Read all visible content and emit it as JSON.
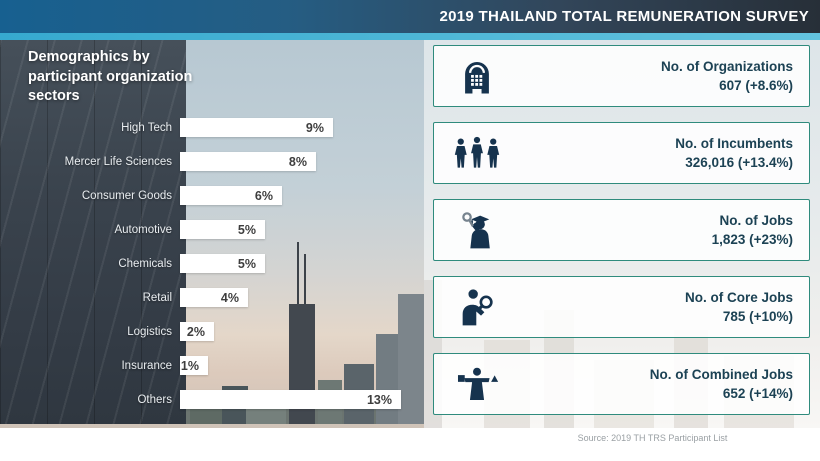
{
  "header": {
    "title": "2019 THAILAND TOTAL REMUNERATION SURVEY"
  },
  "chart": {
    "title": "Demographics by participant organization sectors"
  },
  "chart_data": {
    "type": "bar",
    "orientation": "horizontal",
    "title": "Demographics by participant organization sectors",
    "categories": [
      "High Tech",
      "Mercer Life Sciences",
      "Consumer Goods",
      "Automotive",
      "Chemicals",
      "Retail",
      "Logistics",
      "Insurance",
      "Others"
    ],
    "values": [
      9,
      8,
      6,
      5,
      5,
      4,
      2,
      1,
      13
    ],
    "value_labels": [
      "9%",
      "8%",
      "6%",
      "5%",
      "5%",
      "4%",
      "2%",
      "1%",
      "13%"
    ],
    "unit": "%",
    "xlim": [
      0,
      14
    ],
    "axis": "none",
    "grid": false,
    "legend": false,
    "bar_color": "#ffffff",
    "value_label_position": "inside-end"
  },
  "stats": {
    "cards": [
      {
        "icon": "organization-icon",
        "title": "No. of Organizations",
        "value": "607 (+8.6%)"
      },
      {
        "icon": "incumbents-icon",
        "title": "No. of Incumbents",
        "value": "326,016 (+13.4%)"
      },
      {
        "icon": "jobs-icon",
        "title": "No. of Jobs",
        "value": "1,823 (+23%)"
      },
      {
        "icon": "core-jobs-icon",
        "title": "No. of Core Jobs",
        "value": "785 (+10%)"
      },
      {
        "icon": "combined-jobs-icon",
        "title": "No. of Combined Jobs",
        "value": "652 (+14%)"
      }
    ]
  },
  "footer": {
    "source": "Source: 2019 TH TRS Participant List"
  },
  "colors": {
    "accent_stripe": "#4db6d6",
    "header_blue": "#176090",
    "header_dark": "#272f38",
    "card_border": "#2f8b7d",
    "card_text": "#1c4254",
    "icon_navy": "#16334e",
    "bar_fill": "#ffffff",
    "bar_value_text": "#3e3e3e",
    "source_text": "#9aa0a4"
  }
}
